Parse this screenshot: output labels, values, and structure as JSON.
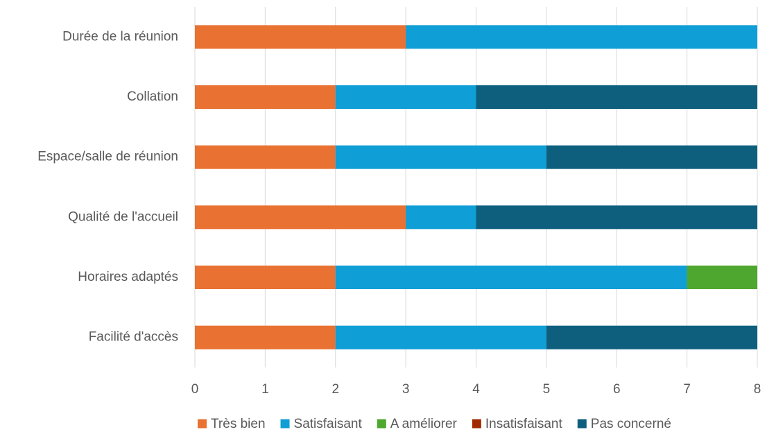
{
  "chart_data": {
    "type": "bar",
    "orientation": "horizontal",
    "stacked": true,
    "categories": [
      "Durée de la réunion",
      "Collation",
      "Espace/salle de réunion",
      "Qualité de l'accueil",
      "Horaires adaptés",
      "Facilité d'accès"
    ],
    "series": [
      {
        "name": "Très bien",
        "color": "#E97132",
        "values": [
          3,
          2,
          2,
          3,
          2,
          2
        ]
      },
      {
        "name": "Satisfaisant",
        "color": "#0F9ED5",
        "values": [
          5,
          2,
          3,
          1,
          5,
          3
        ]
      },
      {
        "name": "A améliorer",
        "color": "#4EA72E",
        "values": [
          0,
          0,
          0,
          0,
          1,
          0
        ]
      },
      {
        "name": "Insatisfaisant",
        "color": "#A02B03",
        "values": [
          0,
          0,
          0,
          0,
          0,
          0
        ]
      },
      {
        "name": "Pas concerné",
        "color": "#0E5F7E",
        "values": [
          0,
          4,
          3,
          4,
          0,
          3
        ]
      }
    ],
    "xlim": [
      0,
      8
    ],
    "xticks": [
      "0",
      "1",
      "2",
      "3",
      "4",
      "5",
      "6",
      "7",
      "8"
    ],
    "grid": true,
    "legend_position": "bottom"
  }
}
